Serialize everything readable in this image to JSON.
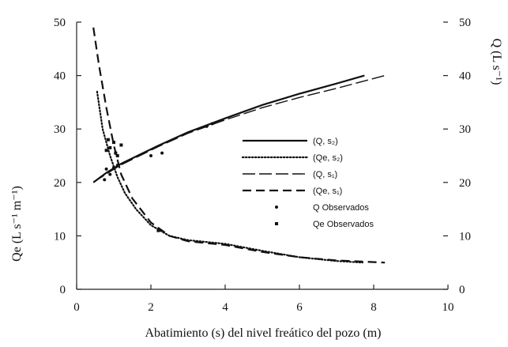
{
  "chart_data": {
    "type": "line",
    "xlabel": "Abatimiento (s) del nivel freático del pozo (m)",
    "ylabel_left": "Qe (L s⁻¹ m⁻¹)",
    "ylabel_right": "Q (L s⁻¹)",
    "xlim": [
      0,
      10
    ],
    "ylim": [
      0,
      50
    ],
    "y2lim": [
      0,
      50
    ],
    "x_ticks": [
      0,
      2,
      4,
      6,
      8,
      10
    ],
    "y_ticks": [
      0,
      10,
      20,
      30,
      40,
      50
    ],
    "y2_ticks": [
      0,
      10,
      20,
      30,
      40,
      50
    ],
    "grid": false,
    "legend_position": "right-center",
    "series": [
      {
        "name": "(Q, s₂)",
        "axis": "right",
        "style": "solid",
        "x": [
          0.45,
          0.8,
          1.2,
          1.7,
          2.2,
          3.0,
          4.0,
          5.0,
          6.0,
          7.0,
          7.75
        ],
        "y": [
          20.0,
          21.8,
          23.5,
          25.2,
          26.9,
          29.4,
          32.0,
          34.5,
          36.6,
          38.5,
          40.0
        ]
      },
      {
        "name": "(Qe, s₂)",
        "axis": "left",
        "style": "dotted",
        "x": [
          0.55,
          0.7,
          0.9,
          1.1,
          1.3,
          1.6,
          2.0,
          2.5,
          3.0,
          4.0,
          5.0,
          6.0,
          7.0,
          7.7
        ],
        "y": [
          37.0,
          30.0,
          25.0,
          21.0,
          18.0,
          15.0,
          12.0,
          10.0,
          9.2,
          8.5,
          7.2,
          6.0,
          5.3,
          5.0
        ]
      },
      {
        "name": "(Q, s₁)",
        "axis": "right",
        "style": "long-dash",
        "x": [
          0.45,
          0.8,
          1.2,
          1.7,
          2.2,
          3.0,
          4.0,
          5.0,
          6.0,
          7.0,
          8.3
        ],
        "y": [
          20.0,
          21.6,
          23.3,
          25.0,
          26.7,
          29.2,
          31.7,
          34.0,
          35.9,
          37.6,
          40.0
        ]
      },
      {
        "name": "(Qe, s₁)",
        "axis": "left",
        "style": "dash",
        "x": [
          0.45,
          0.6,
          0.8,
          1.0,
          1.2,
          1.5,
          2.0,
          2.5,
          3.0,
          4.0,
          5.0,
          6.0,
          7.0,
          8.3
        ],
        "y": [
          49.0,
          42.0,
          34.0,
          27.0,
          21.5,
          17.0,
          12.5,
          10.0,
          9.0,
          8.3,
          7.0,
          6.0,
          5.4,
          5.0
        ]
      },
      {
        "name": "Q   Observados",
        "axis": "right",
        "style": "points",
        "x": [
          0.75,
          0.8,
          0.9,
          1.0,
          1.1,
          2.0,
          2.3,
          3.5,
          3.65
        ],
        "y": [
          20.5,
          22.5,
          21.5,
          22.8,
          23.2,
          25.0,
          25.5,
          30.5,
          31.0
        ]
      },
      {
        "name": "Qe Observados",
        "axis": "left",
        "style": "squares",
        "x": [
          0.8,
          0.85,
          0.9,
          1.0,
          1.05,
          1.1,
          1.2,
          2.2
        ],
        "y": [
          26.0,
          28.0,
          26.5,
          27.5,
          25.5,
          25.0,
          27.0,
          11.0
        ]
      }
    ]
  }
}
